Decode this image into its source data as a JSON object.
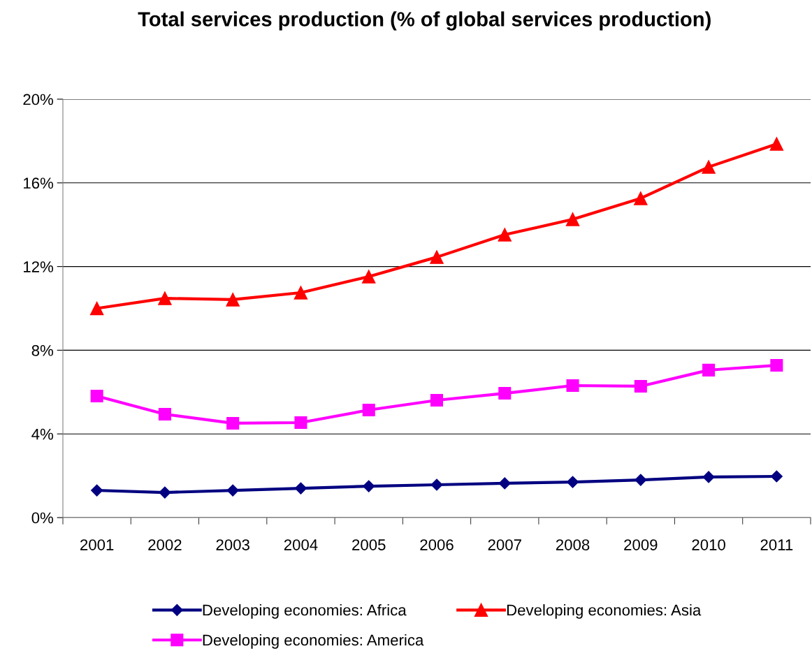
{
  "chart_data": {
    "type": "line",
    "title": "Total services production (% of global services production)",
    "categories": [
      "2001",
      "2002",
      "2003",
      "2004",
      "2005",
      "2006",
      "2007",
      "2008",
      "2009",
      "2010",
      "2011"
    ],
    "series": [
      {
        "name": "Developing economies: Africa",
        "color": "#000080",
        "marker": "diamond",
        "values": [
          1.3,
          1.2,
          1.3,
          1.4,
          1.5,
          1.57,
          1.64,
          1.7,
          1.8,
          1.94,
          1.97
        ]
      },
      {
        "name": "Developing economies: America",
        "color": "#ff00ff",
        "marker": "square",
        "values": [
          5.81,
          4.94,
          4.51,
          4.54,
          5.14,
          5.61,
          5.94,
          6.31,
          6.28,
          7.05,
          7.28
        ]
      },
      {
        "name": "Developing economies: Asia",
        "color": "#ff0000",
        "marker": "triangle",
        "values": [
          10.0,
          10.48,
          10.42,
          10.75,
          11.52,
          12.45,
          13.52,
          14.26,
          15.26,
          16.76,
          17.86
        ]
      }
    ],
    "ylim": [
      0,
      20
    ],
    "yticks": [
      {
        "value": 0,
        "label": "0%"
      },
      {
        "value": 4,
        "label": "4%"
      },
      {
        "value": 8,
        "label": "8%"
      },
      {
        "value": 12,
        "label": "12%"
      },
      {
        "value": 16,
        "label": "16%"
      },
      {
        "value": 20,
        "label": "20%"
      }
    ],
    "grid": "y",
    "legend": "bottom",
    "line_style": "solid"
  }
}
